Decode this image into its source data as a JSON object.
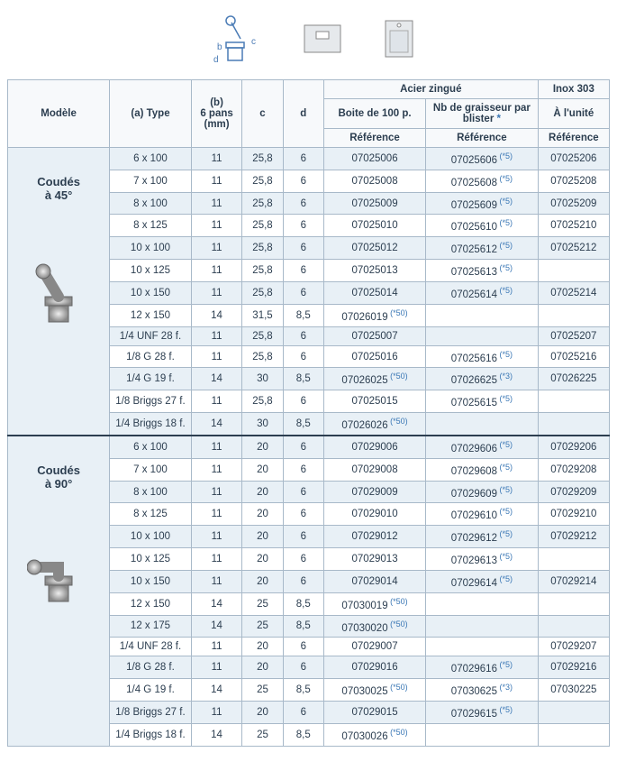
{
  "headers": {
    "modele": "Modèle",
    "type": "(a) Type",
    "b": "(b)\n6 pans\n(mm)",
    "c": "c",
    "d": "d",
    "acier": "Acier zingué",
    "inox": "Inox 303",
    "boite": "Boite de 100 p.",
    "blister": "Nb de graisseur par blister ",
    "unite": "À l'unité",
    "ref": "Référence"
  },
  "sections": [
    {
      "title": "Coudés\nà 45°",
      "rows": [
        {
          "type": "6 x 100",
          "b": "11",
          "c": "25,8",
          "d": "6",
          "r1": "07025006",
          "r2": "07025606",
          "r2s": "(*5)",
          "r3": "07025206",
          "z": true
        },
        {
          "type": "7 x 100",
          "b": "11",
          "c": "25,8",
          "d": "6",
          "r1": "07025008",
          "r2": "07025608",
          "r2s": "(*5)",
          "r3": "07025208",
          "z": false
        },
        {
          "type": "8 x 100",
          "b": "11",
          "c": "25,8",
          "d": "6",
          "r1": "07025009",
          "r2": "07025609",
          "r2s": "(*5)",
          "r3": "07025209",
          "z": true
        },
        {
          "type": "8 x 125",
          "b": "11",
          "c": "25,8",
          "d": "6",
          "r1": "07025010",
          "r2": "07025610",
          "r2s": "(*5)",
          "r3": "07025210",
          "z": false
        },
        {
          "type": "10 x 100",
          "b": "11",
          "c": "25,8",
          "d": "6",
          "r1": "07025012",
          "r2": "07025612",
          "r2s": "(*5)",
          "r3": "07025212",
          "z": true
        },
        {
          "type": "10 x 125",
          "b": "11",
          "c": "25,8",
          "d": "6",
          "r1": "07025013",
          "r2": "07025613",
          "r2s": "(*5)",
          "r3": "",
          "z": false
        },
        {
          "type": "10 x 150",
          "b": "11",
          "c": "25,8",
          "d": "6",
          "r1": "07025014",
          "r2": "07025614",
          "r2s": "(*5)",
          "r3": "07025214",
          "z": true
        },
        {
          "type": "12 x 150",
          "b": "14",
          "c": "31,5",
          "d": "8,5",
          "r1": "07026019",
          "r1s": "(*50)",
          "r2": "",
          "r3": "",
          "z": false
        },
        {
          "type": "1/4 UNF 28 f.",
          "b": "11",
          "c": "25,8",
          "d": "6",
          "r1": "07025007",
          "r2": "",
          "r3": "07025207",
          "z": true
        },
        {
          "type": "1/8 G 28 f.",
          "b": "11",
          "c": "25,8",
          "d": "6",
          "r1": "07025016",
          "r2": "07025616",
          "r2s": "(*5)",
          "r3": "07025216",
          "z": false
        },
        {
          "type": "1/4 G 19 f.",
          "b": "14",
          "c": "30",
          "d": "8,5",
          "r1": "07026025",
          "r1s": "(*50)",
          "r2": "07026625",
          "r2s": "(*3)",
          "r3": "07026225",
          "z": true
        },
        {
          "type": "1/8 Briggs 27 f.",
          "b": "11",
          "c": "25,8",
          "d": "6",
          "r1": "07025015",
          "r2": "07025615",
          "r2s": "(*5)",
          "r3": "",
          "z": false
        },
        {
          "type": "1/4 Briggs 18 f.",
          "b": "14",
          "c": "30",
          "d": "8,5",
          "r1": "07026026",
          "r1s": "(*50)",
          "r2": "",
          "r3": "",
          "z": true
        }
      ]
    },
    {
      "title": "Coudés\nà 90°",
      "rows": [
        {
          "type": "6 x 100",
          "b": "11",
          "c": "20",
          "d": "6",
          "r1": "07029006",
          "r2": "07029606",
          "r2s": "(*5)",
          "r3": "07029206",
          "z": true
        },
        {
          "type": "7 x 100",
          "b": "11",
          "c": "20",
          "d": "6",
          "r1": "07029008",
          "r2": "07029608",
          "r2s": "(*5)",
          "r3": "07029208",
          "z": false
        },
        {
          "type": "8 x 100",
          "b": "11",
          "c": "20",
          "d": "6",
          "r1": "07029009",
          "r2": "07029609",
          "r2s": "(*5)",
          "r3": "07029209",
          "z": true
        },
        {
          "type": "8 x 125",
          "b": "11",
          "c": "20",
          "d": "6",
          "r1": "07029010",
          "r2": "07029610",
          "r2s": "(*5)",
          "r3": "07029210",
          "z": false
        },
        {
          "type": "10 x 100",
          "b": "11",
          "c": "20",
          "d": "6",
          "r1": "07029012",
          "r2": "07029612",
          "r2s": "(*5)",
          "r3": "07029212",
          "z": true
        },
        {
          "type": "10 x 125",
          "b": "11",
          "c": "20",
          "d": "6",
          "r1": "07029013",
          "r2": "07029613",
          "r2s": "(*5)",
          "r3": "",
          "z": false
        },
        {
          "type": "10 x 150",
          "b": "11",
          "c": "20",
          "d": "6",
          "r1": "07029014",
          "r2": "07029614",
          "r2s": "(*5)",
          "r3": "07029214",
          "z": true
        },
        {
          "type": "12 x 150",
          "b": "14",
          "c": "25",
          "d": "8,5",
          "r1": "07030019",
          "r1s": "(*50)",
          "r2": "",
          "r3": "",
          "z": false
        },
        {
          "type": "12 x 175",
          "b": "14",
          "c": "25",
          "d": "8,5",
          "r1": "07030020",
          "r1s": "(*50)",
          "r2": "",
          "r3": "",
          "z": true
        },
        {
          "type": "1/4 UNF 28 f.",
          "b": "11",
          "c": "20",
          "d": "6",
          "r1": "07029007",
          "r2": "",
          "r3": "07029207",
          "z": false
        },
        {
          "type": "1/8 G 28 f.",
          "b": "11",
          "c": "20",
          "d": "6",
          "r1": "07029016",
          "r2": "07029616",
          "r2s": "(*5)",
          "r3": "07029216",
          "z": true
        },
        {
          "type": "1/4 G 19 f.",
          "b": "14",
          "c": "25",
          "d": "8,5",
          "r1": "07030025",
          "r1s": "(*50)",
          "r2": "07030625",
          "r2s": "(*3)",
          "r3": "07030225",
          "z": false
        },
        {
          "type": "1/8 Briggs 27 f.",
          "b": "11",
          "c": "20",
          "d": "6",
          "r1": "07029015",
          "r2": "07029615",
          "r2s": "(*5)",
          "r3": "",
          "z": true
        },
        {
          "type": "1/4 Briggs 18 f.",
          "b": "14",
          "c": "25",
          "d": "8,5",
          "r1": "07030026",
          "r1s": "(*50)",
          "r2": "",
          "r3": "",
          "z": false
        }
      ]
    }
  ]
}
